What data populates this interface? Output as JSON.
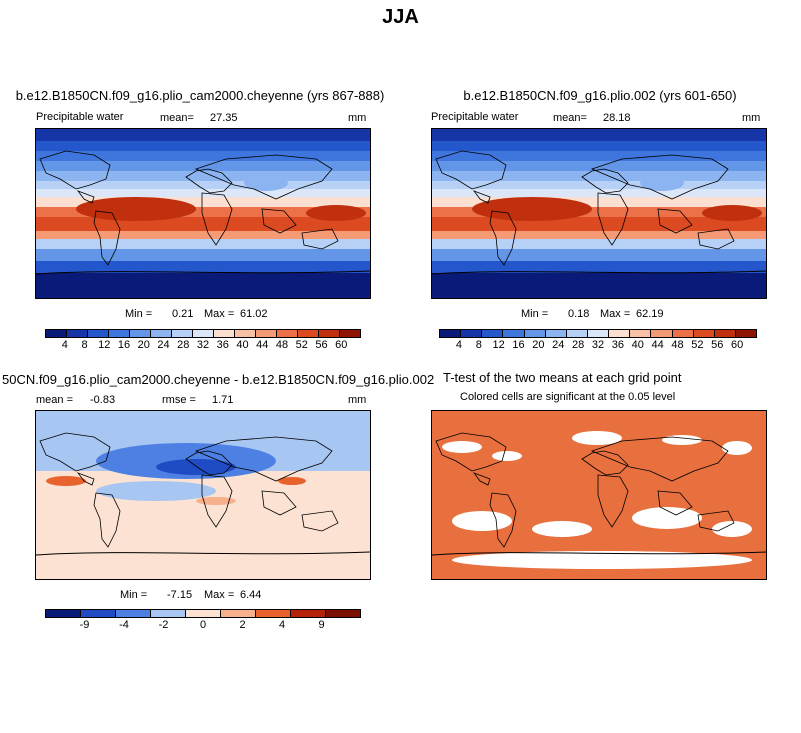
{
  "main_title": "JJA",
  "panels": [
    {
      "title": "b.e12.B1850CN.f09_g16.plio_cam2000.cheyenne (yrs 867-888)",
      "left_label": "Precipitable water",
      "mean_label": "mean=",
      "mean_value": "27.35",
      "units": "mm",
      "min_label": "Min =",
      "min_value": "0.21",
      "max_label": "Max =",
      "max_value": "61.02",
      "colorbar_labels": [
        "4",
        "8",
        "12",
        "16",
        "20",
        "24",
        "28",
        "32",
        "36",
        "40",
        "44",
        "48",
        "52",
        "56",
        "60"
      ]
    },
    {
      "title": "b.e12.B1850CN.f09_g16.plio.002 (yrs 601-650)",
      "left_label": "Precipitable water",
      "mean_label": "mean=",
      "mean_value": "28.18",
      "units": "mm",
      "min_label": "Min =",
      "min_value": "0.18",
      "max_label": "Max =",
      "max_value": "62.19",
      "colorbar_labels": [
        "4",
        "8",
        "12",
        "16",
        "20",
        "24",
        "28",
        "32",
        "36",
        "40",
        "44",
        "48",
        "52",
        "56",
        "60"
      ]
    },
    {
      "title": "50CN.f09_g16.plio_cam2000.cheyenne - b.e12.B1850CN.f09_g16.plio.002",
      "mean_label": "mean =",
      "mean_value": "-0.83",
      "rmse_label": "rmse =",
      "rmse_value": "1.71",
      "units": "mm",
      "min_label": "Min =",
      "min_value": "-7.15",
      "max_label": "Max =",
      "max_value": "6.44",
      "colorbar_labels": [
        "-9",
        "-4",
        "-2",
        "0",
        "2",
        "4",
        "9"
      ]
    },
    {
      "title": "T-test of the two means at each grid point",
      "subtitle": "Colored cells are significant at the 0.05 level"
    }
  ],
  "colors": {
    "abs_scale": [
      "#0a1a78",
      "#1636a8",
      "#2456cc",
      "#3f76de",
      "#6496e8",
      "#8cb4f0",
      "#b6d0f6",
      "#dbe6f8",
      "#fbe0d2",
      "#f8c0a4",
      "#f49a74",
      "#ec7048",
      "#dc4a22",
      "#c0300e",
      "#8e1404"
    ],
    "diff_scale": [
      "#0a1a78",
      "#1f4cc4",
      "#4d80e2",
      "#a8c6f2",
      "#fbe2d2",
      "#f6b08c",
      "#e8622e",
      "#b4220a",
      "#7a1002"
    ],
    "ttest_color": "#e8703e",
    "land_outline": "#000000"
  },
  "chart_data": [
    {
      "type": "heatmap",
      "title": "b.e12.B1850CN.f09_g16.plio_cam2000.cheyenne (yrs 867-888)",
      "variable": "Precipitable water",
      "units": "mm",
      "mean": 27.35,
      "min": 0.21,
      "max": 61.02,
      "colorbar_levels": [
        4,
        8,
        12,
        16,
        20,
        24,
        28,
        32,
        36,
        40,
        44,
        48,
        52,
        56,
        60
      ]
    },
    {
      "type": "heatmap",
      "title": "b.e12.B1850CN.f09_g16.plio.002 (yrs 601-650)",
      "variable": "Precipitable water",
      "units": "mm",
      "mean": 28.18,
      "min": 0.18,
      "max": 62.19,
      "colorbar_levels": [
        4,
        8,
        12,
        16,
        20,
        24,
        28,
        32,
        36,
        40,
        44,
        48,
        52,
        56,
        60
      ]
    },
    {
      "type": "heatmap",
      "title": "50CN.f09_g16.plio_cam2000.cheyenne - b.e12.B1850CN.f09_g16.plio.002",
      "units": "mm",
      "mean": -0.83,
      "rmse": 1.71,
      "min": -7.15,
      "max": 6.44,
      "colorbar_levels": [
        -9,
        -4,
        -2,
        0,
        2,
        4,
        9
      ]
    },
    {
      "type": "heatmap",
      "title": "T-test of the two means at each grid point",
      "subtitle": "Colored cells are significant at the 0.05 level",
      "significance_level": 0.05
    }
  ]
}
